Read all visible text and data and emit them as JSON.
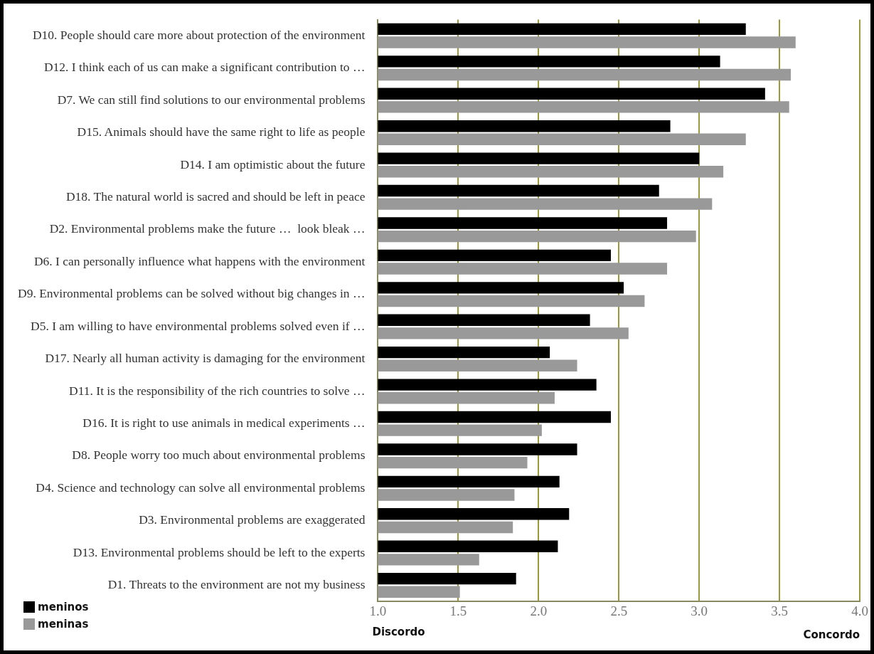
{
  "chart_data": {
    "type": "bar",
    "orientation": "horizontal",
    "categories": [
      "D10. People should care more about protection of the environment",
      "D12. I think each of us can make a significant contribution to …",
      "D7. We can still find solutions to our environmental problems",
      "D15. Animals should have the same right to life as people",
      "D14. I am optimistic about the future",
      "D18. The natural world is sacred and should be left in peace",
      "D2. Environmental problems make the future …  look bleak …",
      "D6. I can personally influence what happens with the environment",
      "D9. Environmental problems can be solved without big changes in …",
      "D5. I am willing to have environmental problems solved even if …",
      "D17. Nearly all human activity is damaging for the environment",
      "D11. It is the responsibility of the rich countries to solve …",
      "D16. It is right to use animals in medical experiments …",
      "D8. People worry too much about environmental problems",
      "D4. Science and technology can solve all environmental problems",
      "D3. Environmental problems are exaggerated",
      "D13. Environmental problems should be left to the experts",
      "D1. Threats to the environment are not my business"
    ],
    "series": [
      {
        "name": "meninos",
        "color": "#000000",
        "values": [
          3.29,
          3.13,
          3.41,
          2.82,
          3.0,
          2.75,
          2.8,
          2.45,
          2.53,
          2.32,
          2.07,
          2.36,
          2.45,
          2.24,
          2.13,
          2.19,
          2.12,
          1.86
        ]
      },
      {
        "name": "meninas",
        "color": "#999999",
        "values": [
          3.6,
          3.57,
          3.56,
          3.29,
          3.15,
          3.08,
          2.98,
          2.8,
          2.66,
          2.56,
          2.24,
          2.1,
          2.02,
          1.93,
          1.85,
          1.84,
          1.63,
          1.51
        ]
      }
    ],
    "xlim": [
      1,
      4
    ],
    "xticks": [
      {
        "value": 1,
        "label": "1.0"
      },
      {
        "value": 1.5,
        "label": "1.5"
      },
      {
        "value": 2,
        "label": "2.0"
      },
      {
        "value": 2.5,
        "label": "2.5"
      },
      {
        "value": 3,
        "label": "3.0"
      },
      {
        "value": 3.5,
        "label": "3.5"
      },
      {
        "value": 4,
        "label": "4.0"
      }
    ],
    "grid": "x",
    "legend": "bottom left",
    "annotations": [
      "Discordo",
      "Concordo"
    ]
  }
}
